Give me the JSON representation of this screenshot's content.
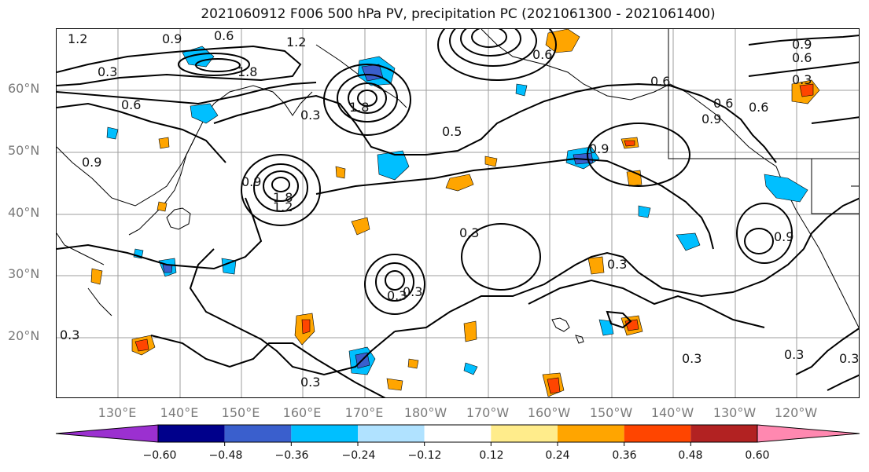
{
  "title": "2021060912 F006 500 hPa PV, precipitation PC (2021061300 - 2021061400)",
  "lat_labels": [
    "60°N",
    "50°N",
    "40°N",
    "30°N",
    "20°N"
  ],
  "lon_labels": [
    "130°E",
    "140°E",
    "150°E",
    "160°E",
    "170°E",
    "180°W",
    "170°W",
    "160°W",
    "150°W",
    "140°W",
    "130°W",
    "120°W"
  ],
  "contour_labels": [
    "1.2",
    "0.9",
    "0.6",
    "1.2",
    "0.3",
    "1.8",
    "0.3",
    "0.6",
    "0.9",
    "0.3",
    "1.8",
    "0.5",
    "0.6",
    "0.9",
    "1.2",
    "1.8",
    "0.9",
    "0.3",
    "0.6",
    "0.9",
    "0.6",
    "0.9",
    "0.6",
    "0.3",
    "0.3",
    "0.9",
    "0.6",
    "0.3",
    "0.3",
    "0.3",
    "0.3",
    "0.3",
    "0.3"
  ],
  "colorbar": {
    "ticks": [
      "−0.60",
      "−0.48",
      "−0.36",
      "−0.24",
      "−0.12",
      "0.12",
      "0.24",
      "0.36",
      "0.48",
      "0.60"
    ],
    "colors": [
      "#9b30d0",
      "#00008b",
      "#3a5fcd",
      "#00bfff",
      "#b0e2ff",
      "#ffffff",
      "#ffec8b",
      "#ffa500",
      "#ff4500",
      "#b22222",
      "#ff88b0"
    ]
  }
}
